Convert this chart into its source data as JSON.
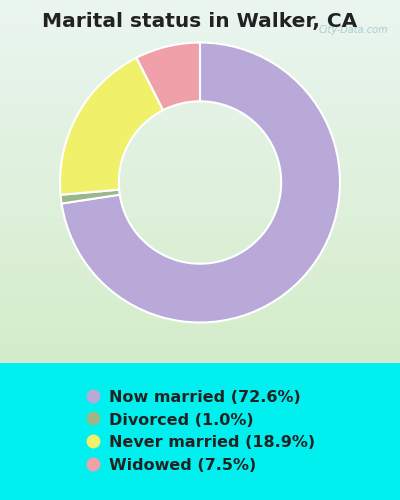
{
  "title": "Marital status in Walker, CA",
  "slices": [
    72.6,
    1.0,
    18.9,
    7.5
  ],
  "labels": [
    "Now married (72.6%)",
    "Divorced (1.0%)",
    "Never married (18.9%)",
    "Widowed (7.5%)"
  ],
  "colors": [
    "#b8a9d9",
    "#9ab88a",
    "#f0f06a",
    "#f0a0a8"
  ],
  "outer_bg": "#00f0f0",
  "title_color": "#222222",
  "title_fontsize": 14.5,
  "watermark": "City-Data.com",
  "legend_fontsize": 11.5,
  "chart_bg_top": "#eaf5f0",
  "chart_bg_bottom": "#d4ecca",
  "donut_width": 0.42
}
